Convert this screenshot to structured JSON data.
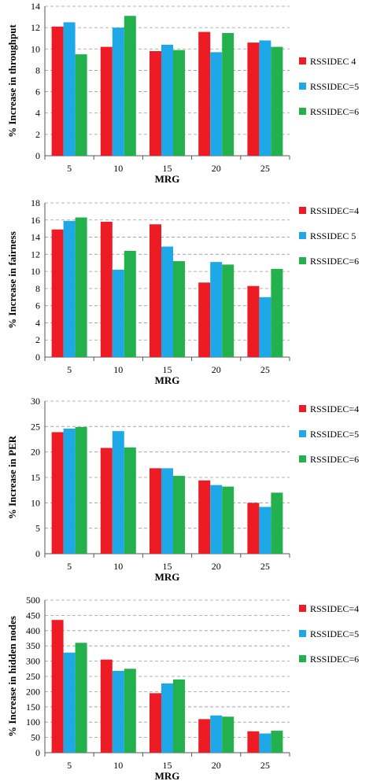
{
  "colors": {
    "s1": "#ed1c24",
    "s2": "#1ea8e8",
    "s3": "#22b14c"
  },
  "chart_data": [
    {
      "type": "bar",
      "categories": [
        "5",
        "10",
        "15",
        "20",
        "25"
      ],
      "xlabel": "MRG",
      "ylabel": "% Increase in throughput",
      "ylim": [
        0,
        14
      ],
      "yticks": [
        0,
        2,
        4,
        6,
        8,
        10,
        12,
        14
      ],
      "grid": true,
      "legend_position": "right",
      "series": [
        {
          "name": "RSSIDEC  4",
          "values": [
            12.1,
            10.2,
            9.8,
            11.6,
            10.6
          ]
        },
        {
          "name": "RSSIDEC=5",
          "values": [
            12.5,
            12.0,
            10.4,
            9.7,
            10.8
          ]
        },
        {
          "name": "RSSIDEC=6",
          "values": [
            9.5,
            13.1,
            9.9,
            11.5,
            10.2
          ]
        }
      ]
    },
    {
      "type": "bar",
      "categories": [
        "5",
        "10",
        "15",
        "20",
        "25"
      ],
      "xlabel": "MRG",
      "ylabel": "% Increase in fairness",
      "ylim": [
        0,
        18
      ],
      "yticks": [
        0,
        2,
        4,
        6,
        8,
        10,
        12,
        14,
        16,
        18
      ],
      "grid": true,
      "legend_position": "right",
      "series": [
        {
          "name": "RSSIDEC=4",
          "values": [
            14.9,
            15.8,
            15.5,
            8.7,
            8.3
          ]
        },
        {
          "name": "RSSIDEC  5",
          "values": [
            15.9,
            10.2,
            12.9,
            11.1,
            7.0
          ]
        },
        {
          "name": "RSSIDEC=6",
          "values": [
            16.3,
            12.4,
            11.2,
            10.8,
            10.3
          ]
        }
      ]
    },
    {
      "type": "bar",
      "categories": [
        "5",
        "10",
        "15",
        "20",
        "25"
      ],
      "xlabel": "MRG",
      "ylabel": "% Increase in PER",
      "ylim": [
        0,
        30
      ],
      "yticks": [
        0,
        5,
        10,
        15,
        20,
        25,
        30
      ],
      "grid": true,
      "legend_position": "right",
      "series": [
        {
          "name": "RSSIDEC=4",
          "values": [
            23.9,
            20.8,
            16.8,
            14.4,
            10.0
          ]
        },
        {
          "name": "RSSIDEC=5",
          "values": [
            24.6,
            24.1,
            16.8,
            13.5,
            9.2
          ]
        },
        {
          "name": "RSSIDEC=6",
          "values": [
            24.9,
            20.9,
            15.3,
            13.2,
            12.0
          ]
        }
      ]
    },
    {
      "type": "bar",
      "categories": [
        "5",
        "10",
        "15",
        "20",
        "25"
      ],
      "xlabel": "MRG",
      "ylabel": "% Increase in hidden nodes",
      "ylim": [
        0,
        500
      ],
      "yticks": [
        0,
        50,
        100,
        150,
        200,
        250,
        300,
        350,
        400,
        450,
        500
      ],
      "grid": true,
      "legend_position": "right",
      "series": [
        {
          "name": "RSSIDEC=4",
          "values": [
            435,
            305,
            195,
            110,
            70
          ]
        },
        {
          "name": "RSSIDEC=5",
          "values": [
            328,
            268,
            227,
            122,
            63
          ]
        },
        {
          "name": "RSSIDEC=6",
          "values": [
            360,
            275,
            240,
            118,
            72
          ]
        }
      ]
    }
  ]
}
